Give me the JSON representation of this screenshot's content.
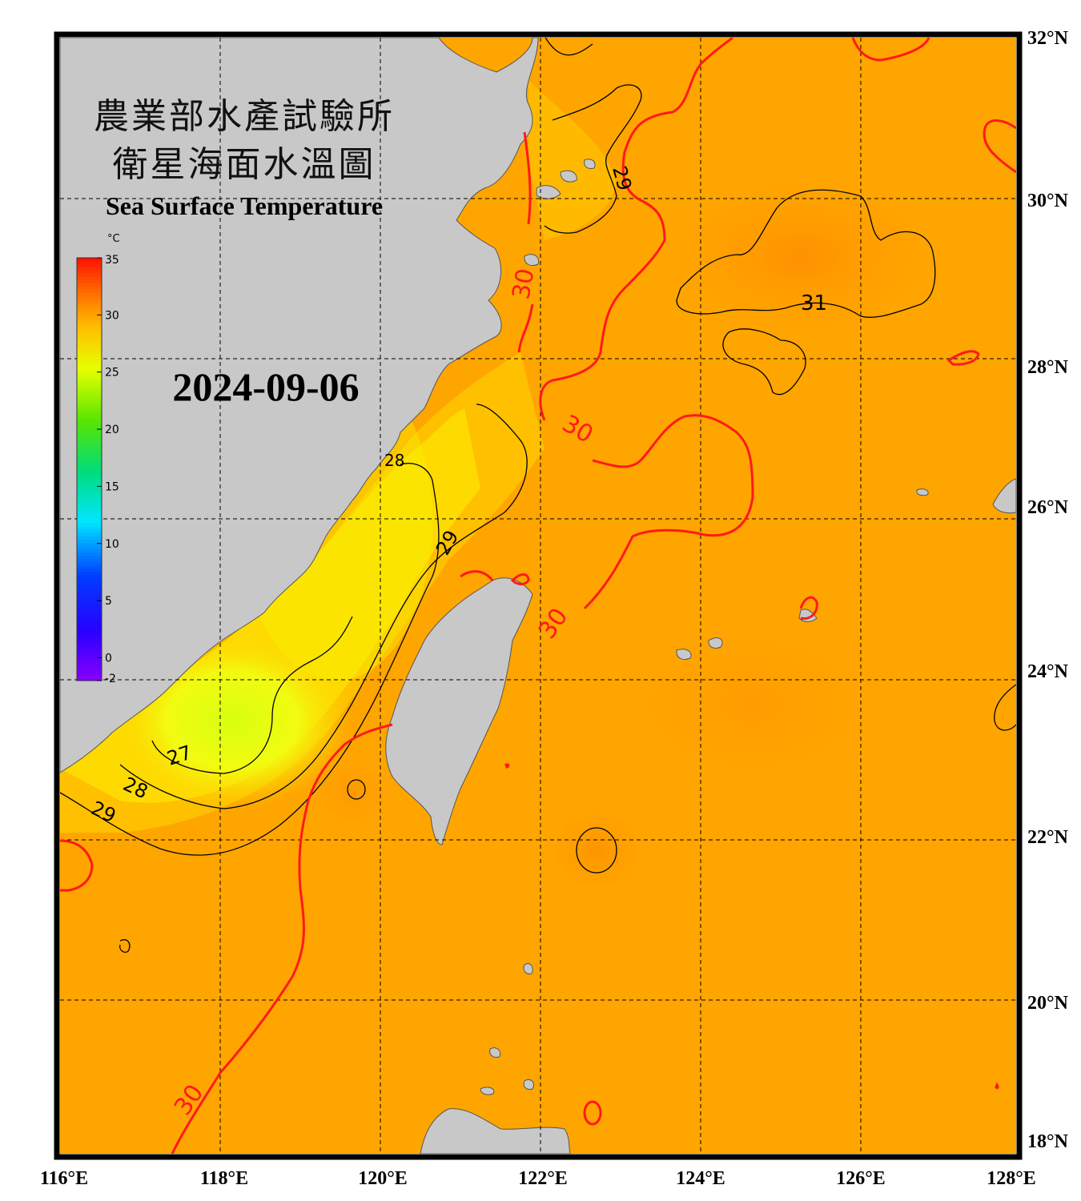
{
  "title": {
    "line1": "農業部水產試驗所",
    "line2": "衛星海面水溫圖",
    "english": "Sea Surface Temperature"
  },
  "date": "2024-09-06",
  "colorbar": {
    "unit": "°C",
    "min": -2,
    "max": 35,
    "ticks": [
      "35",
      "30",
      "25",
      "20",
      "15",
      "10",
      "5",
      "0",
      "-2"
    ],
    "tick_values": [
      35,
      30,
      25,
      20,
      15,
      10,
      5,
      0,
      -2
    ]
  },
  "map": {
    "lon_range": [
      116,
      128
    ],
    "lat_range": [
      18,
      32
    ],
    "lon_labels": [
      "116°E",
      "118°E",
      "120°E",
      "122°E",
      "124°E",
      "126°E",
      "128°E"
    ],
    "lat_labels": [
      "32°N",
      "30°N",
      "28°N",
      "26°N",
      "24°N",
      "22°N",
      "20°N",
      "18°N"
    ],
    "land_color": "#c8c8c8",
    "isotherm_highlight_color": "#ff1a1a",
    "isotherm_color": "#000000",
    "contour_labels": [
      "29",
      "30",
      "31",
      "30",
      "29",
      "30",
      "27",
      "28",
      "29",
      "30",
      "28"
    ]
  }
}
